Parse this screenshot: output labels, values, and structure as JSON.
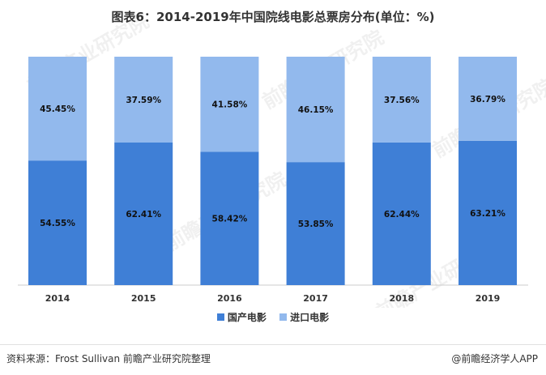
{
  "title": "图表6：2014-2019年中国院线电影总票房分布(单位：%)",
  "source": "资料来源：Frost Sullivan 前瞻产业研究院整理",
  "brand": "@前瞻经济学人APP",
  "watermark": "前瞻产业研究院",
  "chart_data": {
    "type": "bar",
    "stacked": true,
    "categories": [
      "2014",
      "2015",
      "2016",
      "2017",
      "2018",
      "2019"
    ],
    "series": [
      {
        "name": "国产电影",
        "color": "#3f7fd6",
        "values": [
          54.55,
          62.41,
          58.42,
          53.85,
          62.44,
          63.21
        ],
        "labels": [
          "54.55%",
          "62.41%",
          "58.42%",
          "53.85%",
          "62.44%",
          "63.21%"
        ]
      },
      {
        "name": "进口电影",
        "color": "#92b9ed",
        "values": [
          45.45,
          37.59,
          41.58,
          46.15,
          37.56,
          36.79
        ],
        "labels": [
          "45.45%",
          "37.59%",
          "41.58%",
          "46.15%",
          "37.56%",
          "36.79%"
        ]
      }
    ],
    "ylim": [
      0,
      100
    ],
    "legend": "bottom-center",
    "grid": false
  }
}
